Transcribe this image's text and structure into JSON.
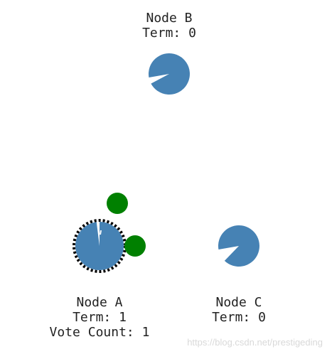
{
  "colors": {
    "node_fill": "#4682b4",
    "message_fill": "#008000",
    "candidate_border": "#000000",
    "background": "#ffffff",
    "watermark": "#d9d9d9"
  },
  "nodes": [
    {
      "id": "B",
      "name": "Node B",
      "term_label": "Term: 0",
      "vote_label": "",
      "state": "follower",
      "timeout_progress": 0.95
    },
    {
      "id": "A",
      "name": "Node A",
      "term_label": "Term: 1",
      "vote_label": "Vote Count: 1",
      "state": "candidate",
      "timeout_progress": 0.02
    },
    {
      "id": "C",
      "name": "Node C",
      "term_label": "Term: 0",
      "vote_label": "",
      "state": "follower",
      "timeout_progress": 0.9
    }
  ],
  "messages": [
    {
      "from": "A",
      "to": "B",
      "type": "request-vote"
    },
    {
      "from": "A",
      "to": "C",
      "type": "request-vote"
    }
  ],
  "watermark": "https://blog.csdn.net/prestigeding"
}
